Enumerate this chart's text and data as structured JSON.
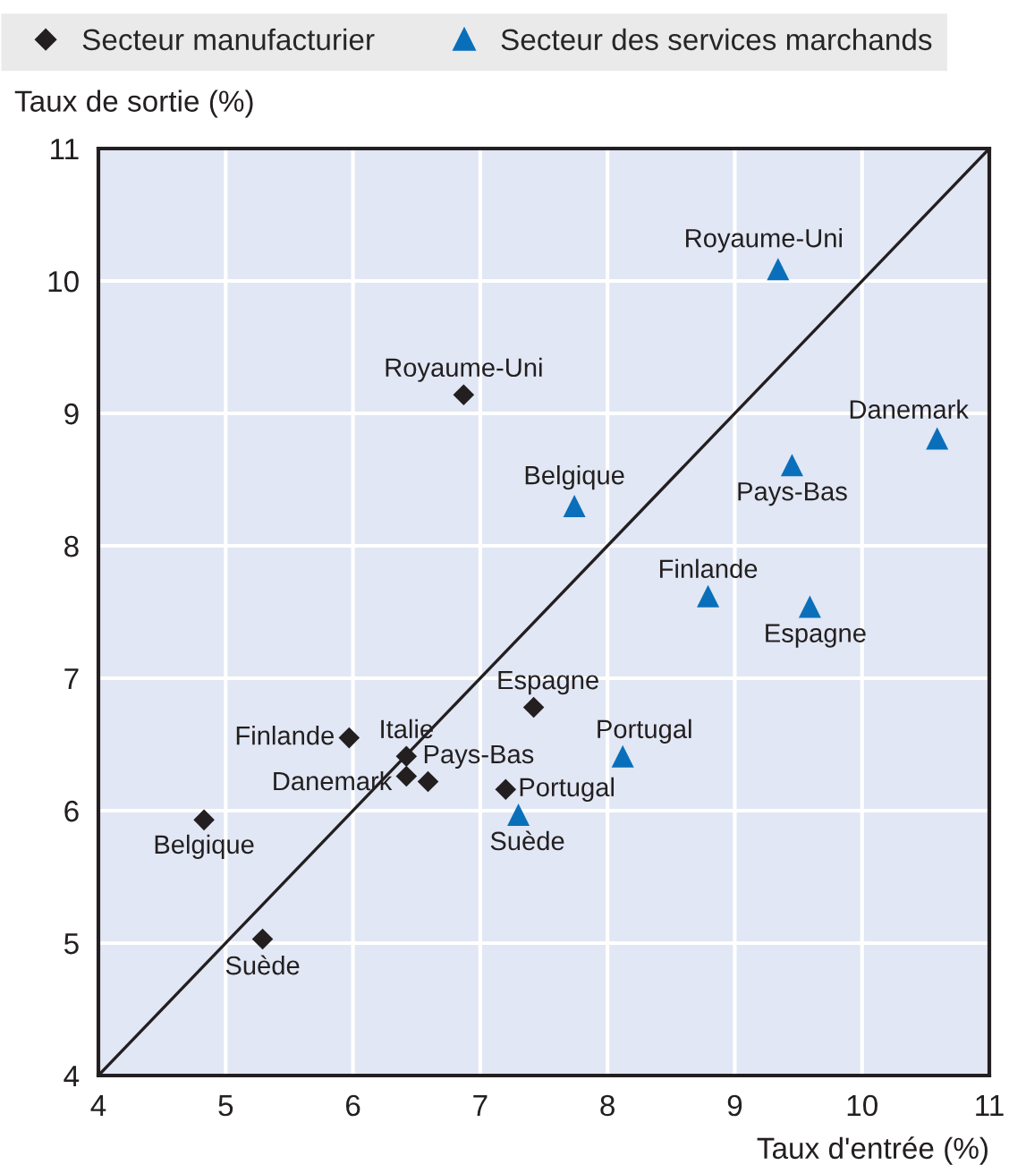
{
  "chart_data": {
    "type": "scatter",
    "xlabel": "Taux d'entrée (%)",
    "ylabel": "Taux de sortie (%)",
    "xlim": [
      4,
      11
    ],
    "ylim": [
      4,
      11
    ],
    "xticks": [
      4,
      5,
      6,
      7,
      8,
      9,
      10,
      11
    ],
    "yticks": [
      4,
      5,
      6,
      7,
      8,
      9,
      10,
      11
    ],
    "grid": true,
    "legend": "top",
    "series": [
      {
        "name": "Secteur manufacturier",
        "color": "#231f20",
        "marker": "diamond",
        "x": [
          6.87,
          5.97,
          6.42,
          6.42,
          6.59,
          7.42,
          7.2,
          4.83,
          5.29
        ],
        "values": [
          9.14,
          6.55,
          6.41,
          6.26,
          6.22,
          6.78,
          6.16,
          5.93,
          5.03
        ]
      },
      {
        "name": "Secteur des services marchands",
        "color": "#0a6fba",
        "marker": "triangle",
        "x": [
          9.34,
          10.59,
          9.45,
          7.74,
          8.79,
          9.59,
          8.12,
          7.3
        ],
        "values": [
          10.09,
          8.81,
          8.61,
          8.3,
          7.62,
          7.54,
          6.41,
          5.97
        ]
      },
      {
        "type": "line",
        "color": "#231f20",
        "marker": "none",
        "x": [
          4,
          11
        ],
        "values": [
          4,
          11
        ]
      }
    ],
    "annotations": [
      {
        "text": "Royaume-Uni",
        "x": 6.87,
        "y": 9.14
      },
      {
        "text": "Finlande",
        "x": 5.97,
        "y": 6.55
      },
      {
        "text": "Italie",
        "x": 6.42,
        "y": 6.41
      },
      {
        "text": "Danemark",
        "x": 6.42,
        "y": 6.26
      },
      {
        "text": "Pays-Bas",
        "x": 6.59,
        "y": 6.22
      },
      {
        "text": "Espagne",
        "x": 7.42,
        "y": 6.78
      },
      {
        "text": "Portugal",
        "x": 7.2,
        "y": 6.16
      },
      {
        "text": "Belgique",
        "x": 4.83,
        "y": 5.93
      },
      {
        "text": "Suède",
        "x": 5.29,
        "y": 5.03
      },
      {
        "text": "Royaume-Uni",
        "x": 9.34,
        "y": 10.09
      },
      {
        "text": "Danemark",
        "x": 10.59,
        "y": 8.81
      },
      {
        "text": "Pays-Bas",
        "x": 9.45,
        "y": 8.61
      },
      {
        "text": "Belgique",
        "x": 7.74,
        "y": 8.3
      },
      {
        "text": "Finlande",
        "x": 8.79,
        "y": 7.62
      },
      {
        "text": "Espagne",
        "x": 9.59,
        "y": 7.54
      },
      {
        "text": "Portugal",
        "x": 8.12,
        "y": 6.41
      },
      {
        "text": "Suède",
        "x": 7.3,
        "y": 5.97
      }
    ]
  }
}
